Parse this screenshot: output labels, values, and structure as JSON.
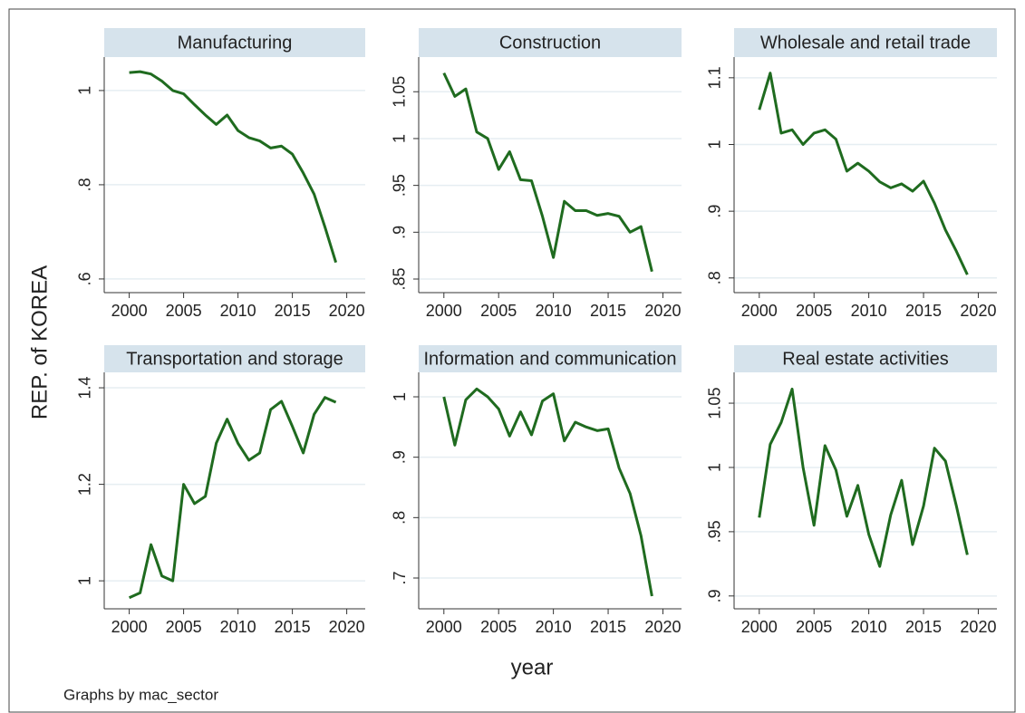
{
  "y_label": "REP. of KOREA",
  "x_label": "year",
  "note": "Graphs by mac_sector",
  "chart_data": [
    {
      "type": "line",
      "title": "Manufacturing",
      "color": "#1f6b1f",
      "grid": true,
      "x": [
        2000,
        2001,
        2002,
        2003,
        2004,
        2005,
        2006,
        2007,
        2008,
        2009,
        2010,
        2011,
        2012,
        2013,
        2014,
        2015,
        2016,
        2017,
        2018,
        2019
      ],
      "values": [
        1.038,
        1.04,
        1.035,
        1.02,
        1.0,
        0.993,
        0.97,
        0.948,
        0.928,
        0.948,
        0.915,
        0.9,
        0.893,
        0.878,
        0.882,
        0.865,
        0.825,
        0.78,
        0.71,
        0.635
      ],
      "xlim": [
        1997.7,
        2021.7
      ],
      "xticks": [
        2000,
        2005,
        2010,
        2015,
        2020
      ],
      "ylim": [
        0.571,
        1.071
      ],
      "yticks": [
        {
          "value": 0.6,
          "label": ".6"
        },
        {
          "value": 0.8,
          "label": ".8"
        },
        1
      ]
    },
    {
      "type": "line",
      "title": "Construction",
      "color": "#1f6b1f",
      "grid": true,
      "x": [
        2000,
        2001,
        2002,
        2003,
        2004,
        2005,
        2006,
        2007,
        2008,
        2009,
        2010,
        2011,
        2012,
        2013,
        2014,
        2015,
        2016,
        2017,
        2018,
        2019
      ],
      "values": [
        1.07,
        1.045,
        1.053,
        1.007,
        1.0,
        0.967,
        0.986,
        0.956,
        0.955,
        0.917,
        0.873,
        0.933,
        0.923,
        0.923,
        0.918,
        0.92,
        0.917,
        0.9,
        0.906,
        0.858
      ],
      "xlim": [
        1997.7,
        2021.7
      ],
      "xticks": [
        2000,
        2005,
        2010,
        2015,
        2020
      ],
      "ylim": [
        0.8355,
        1.087
      ],
      "yticks": [
        {
          "value": 0.85,
          "label": ".85"
        },
        {
          "value": 0.9,
          "label": ".9"
        },
        {
          "value": 0.95,
          "label": ".95"
        },
        1,
        1.05
      ]
    },
    {
      "type": "line",
      "title": "Wholesale and retail trade",
      "color": "#1f6b1f",
      "grid": true,
      "x": [
        2000,
        2001,
        2002,
        2003,
        2004,
        2005,
        2006,
        2007,
        2008,
        2009,
        2010,
        2011,
        2012,
        2013,
        2014,
        2015,
        2016,
        2017,
        2018,
        2019
      ],
      "values": [
        1.052,
        1.107,
        1.017,
        1.022,
        1.0,
        1.017,
        1.022,
        1.008,
        0.96,
        0.972,
        0.96,
        0.944,
        0.935,
        0.941,
        0.93,
        0.945,
        0.912,
        0.872,
        0.84,
        0.805
      ],
      "xlim": [
        1997.7,
        2021.7
      ],
      "xticks": [
        2000,
        2005,
        2010,
        2015,
        2020
      ],
      "ylim": [
        0.778,
        1.131
      ],
      "yticks": [
        {
          "value": 0.8,
          "label": ".8"
        },
        {
          "value": 0.9,
          "label": ".9"
        },
        1,
        1.1
      ]
    },
    {
      "type": "line",
      "title": "Transportation and storage",
      "color": "#1f6b1f",
      "grid": true,
      "x": [
        2000,
        2001,
        2002,
        2003,
        2004,
        2005,
        2006,
        2007,
        2008,
        2009,
        2010,
        2011,
        2012,
        2013,
        2014,
        2015,
        2016,
        2017,
        2018,
        2019
      ],
      "values": [
        0.965,
        0.975,
        1.075,
        1.01,
        1.0,
        1.2,
        1.16,
        1.175,
        1.285,
        1.335,
        1.285,
        1.25,
        1.265,
        1.355,
        1.372,
        1.32,
        1.265,
        1.345,
        1.38,
        1.37
      ],
      "xlim": [
        1997.7,
        2021.7
      ],
      "xticks": [
        2000,
        2005,
        2010,
        2015,
        2020
      ],
      "ylim": [
        0.942,
        1.432
      ],
      "yticks": [
        1,
        1.2,
        1.4
      ]
    },
    {
      "type": "line",
      "title": "Information and communication",
      "color": "#1f6b1f",
      "grid": true,
      "x": [
        2000,
        2001,
        2002,
        2003,
        2004,
        2005,
        2006,
        2007,
        2008,
        2009,
        2010,
        2011,
        2012,
        2013,
        2014,
        2015,
        2016,
        2017,
        2018,
        2019
      ],
      "values": [
        1.0,
        0.92,
        0.995,
        1.013,
        1.0,
        0.98,
        0.935,
        0.975,
        0.937,
        0.993,
        1.005,
        0.927,
        0.958,
        0.95,
        0.944,
        0.947,
        0.882,
        0.84,
        0.77,
        0.67
      ],
      "xlim": [
        1997.7,
        2021.7
      ],
      "xticks": [
        2000,
        2005,
        2010,
        2015,
        2020
      ],
      "ylim": [
        0.649,
        1.0405
      ],
      "yticks": [
        {
          "value": 0.7,
          "label": ".7"
        },
        {
          "value": 0.8,
          "label": ".8"
        },
        {
          "value": 0.9,
          "label": ".9"
        },
        1
      ]
    },
    {
      "type": "line",
      "title": "Real estate activities",
      "color": "#1f6b1f",
      "grid": true,
      "x": [
        2000,
        2001,
        2002,
        2003,
        2004,
        2005,
        2006,
        2007,
        2008,
        2009,
        2010,
        2011,
        2012,
        2013,
        2014,
        2015,
        2016,
        2017,
        2018,
        2019
      ],
      "values": [
        0.961,
        1.018,
        1.035,
        1.061,
        1.0,
        0.955,
        1.017,
        0.998,
        0.962,
        0.986,
        0.948,
        0.923,
        0.963,
        0.99,
        0.94,
        0.97,
        1.015,
        1.005,
        0.97,
        0.932
      ],
      "xlim": [
        1997.7,
        2021.7
      ],
      "xticks": [
        2000,
        2005,
        2010,
        2015,
        2020
      ],
      "ylim": [
        0.89,
        1.074
      ],
      "yticks": [
        {
          "value": 0.9,
          "label": ".9"
        },
        {
          "value": 0.95,
          "label": ".95"
        },
        1,
        1.05
      ]
    }
  ]
}
